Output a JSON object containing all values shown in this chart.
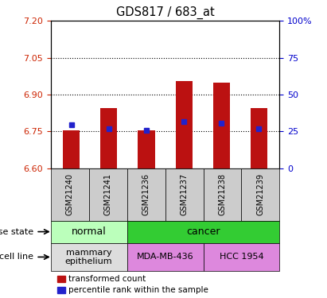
{
  "title": "GDS817 / 683_at",
  "samples": [
    "GSM21240",
    "GSM21241",
    "GSM21236",
    "GSM21237",
    "GSM21238",
    "GSM21239"
  ],
  "bar_bottoms": [
    6.6,
    6.6,
    6.6,
    6.6,
    6.6,
    6.6
  ],
  "bar_tops": [
    6.755,
    6.845,
    6.755,
    6.955,
    6.95,
    6.845
  ],
  "percentile_values": [
    6.778,
    6.762,
    6.755,
    6.79,
    6.785,
    6.762
  ],
  "ylim_left": [
    6.6,
    7.2
  ],
  "yticks_left": [
    6.6,
    6.75,
    6.9,
    7.05,
    7.2
  ],
  "yticks_right": [
    0,
    25,
    50,
    75,
    100
  ],
  "bar_color": "#bb1111",
  "percentile_color": "#2222cc",
  "disease_state_groups": [
    {
      "label": "normal",
      "span": [
        0,
        2
      ],
      "color": "#bbffbb"
    },
    {
      "label": "cancer",
      "span": [
        2,
        6
      ],
      "color": "#33cc33"
    }
  ],
  "cell_line_groups": [
    {
      "label": "mammary\nepithelium",
      "span": [
        0,
        2
      ],
      "color": "#dddddd"
    },
    {
      "label": "MDA-MB-436",
      "span": [
        2,
        4
      ],
      "color": "#dd88dd"
    },
    {
      "label": "HCC 1954",
      "span": [
        4,
        6
      ],
      "color": "#dd88dd"
    }
  ],
  "legend_red_label": "transformed count",
  "legend_blue_label": "percentile rank within the sample",
  "disease_state_label": "disease state",
  "cell_line_label": "cell line",
  "left_tick_color": "#cc2200",
  "right_tick_color": "#0000cc",
  "sample_box_color": "#cccccc"
}
